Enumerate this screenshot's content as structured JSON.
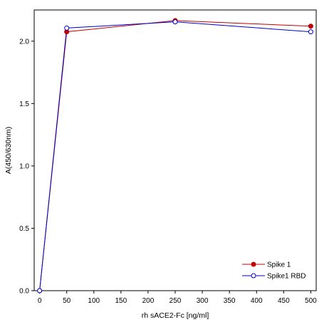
{
  "chart_data": {
    "type": "line",
    "xlabel": "rh sACE2-Fc [ng/ml]",
    "ylabel": "A(450/630nm)",
    "xlim": [
      -10,
      510
    ],
    "ylim": [
      0,
      2.25
    ],
    "xticks": [
      0,
      50,
      100,
      150,
      200,
      250,
      300,
      350,
      400,
      450,
      500
    ],
    "yticks": [
      0.0,
      0.5,
      1.0,
      1.5,
      2.0
    ],
    "ytick_labels": [
      "0.0",
      "0.5",
      "1.0",
      "1.5",
      "2.0"
    ],
    "x": [
      0,
      50,
      250,
      500
    ],
    "series": [
      {
        "name": "Spike 1",
        "values": [
          0.0,
          2.075,
          2.165,
          2.12
        ],
        "color": "#c00000",
        "marker": "filled-circle"
      },
      {
        "name": "Spike1 RBD",
        "values": [
          0.0,
          2.105,
          2.155,
          2.075
        ],
        "color": "#0000cc",
        "marker": "open-circle"
      }
    ],
    "legend_position": "bottom-right",
    "grid": false
  }
}
